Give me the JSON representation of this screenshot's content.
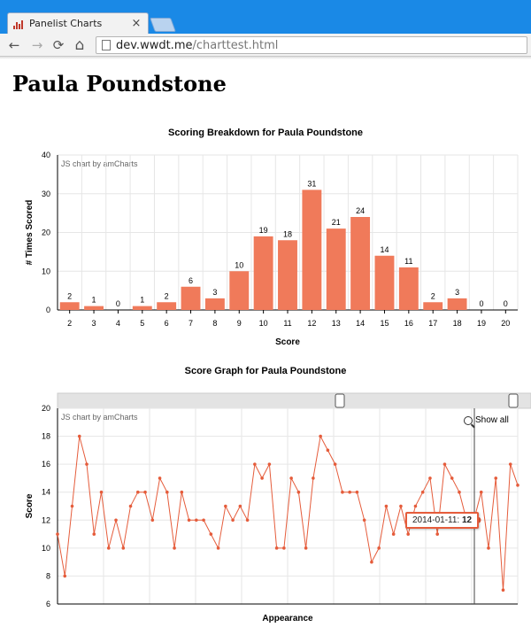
{
  "browser": {
    "tab_title": "Panelist Charts",
    "tab_close": "×",
    "url_host": "dev.wwdt.me",
    "url_path": "/charttest.html",
    "back_icon": "←",
    "forward_icon": "→",
    "reload_icon": "⟳",
    "home_icon": "⌂"
  },
  "page": {
    "heading": "Paula Poundstone"
  },
  "colors": {
    "bar": "#f07a5a",
    "line": "#e55c3b",
    "grid": "#e6e6e6"
  },
  "chart_data": [
    {
      "type": "bar",
      "title": "Scoring Breakdown for Paula Poundstone",
      "credit": "JS chart by amCharts",
      "xlabel": "Score",
      "ylabel": "# Times Scored",
      "categories": [
        "2",
        "3",
        "4",
        "5",
        "6",
        "7",
        "8",
        "9",
        "10",
        "11",
        "12",
        "13",
        "14",
        "15",
        "16",
        "17",
        "18",
        "19",
        "20"
      ],
      "values": [
        2,
        1,
        0,
        1,
        2,
        6,
        3,
        10,
        19,
        18,
        31,
        21,
        24,
        14,
        11,
        2,
        3,
        0,
        0
      ],
      "ylim": [
        0,
        40
      ],
      "yticks": [
        0,
        10,
        20,
        30,
        40
      ],
      "grid": true
    },
    {
      "type": "line",
      "title": "Score Graph for Paula Poundstone",
      "credit": "JS chart by amCharts",
      "xlabel": "Appearance",
      "ylabel": "Score",
      "show_all_label": "Show all",
      "tooltip": {
        "date": "2014-01-11",
        "value": "12"
      },
      "values": [
        11,
        8,
        13,
        18,
        16,
        11,
        14,
        10,
        12,
        10,
        13,
        14,
        14,
        12,
        15,
        14,
        10,
        14,
        12,
        12,
        12,
        11,
        10,
        13,
        12,
        13,
        12,
        16,
        15,
        16,
        10,
        10,
        15,
        14,
        10,
        15,
        18,
        17,
        16,
        14,
        14,
        14,
        12,
        9,
        10,
        13,
        11,
        13,
        11,
        13,
        14,
        15,
        11,
        16,
        15,
        14,
        12,
        12,
        14,
        10,
        15,
        7,
        16,
        14.5
      ],
      "ylim": [
        6,
        20
      ],
      "yticks": [
        6,
        8,
        10,
        12,
        14,
        16,
        18,
        20
      ],
      "grid": true
    }
  ]
}
